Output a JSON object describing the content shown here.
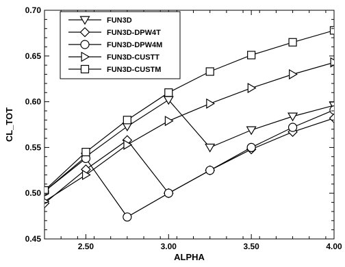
{
  "chart_data": {
    "type": "line",
    "xlabel": "ALPHA",
    "ylabel": "CL_TOT",
    "xlim": [
      2.25,
      4.0
    ],
    "ylim": [
      0.45,
      0.7
    ],
    "x_ticks": [
      "2.50",
      "3.00",
      "3.50",
      "4.00"
    ],
    "y_ticks": [
      "0.45",
      "0.50",
      "0.55",
      "0.60",
      "0.65",
      "0.70"
    ],
    "grid": false,
    "legend_position": "top-left",
    "series": [
      {
        "name": "FUN3D",
        "marker": "triangle-down",
        "x": [
          2.25,
          2.5,
          2.75,
          3.0,
          3.25,
          3.5,
          3.75,
          4.0
        ],
        "y": [
          0.502,
          0.54,
          0.573,
          0.602,
          0.55,
          0.569,
          0.584,
          0.596
        ]
      },
      {
        "name": "FUN3D-DPW4T",
        "marker": "diamond",
        "x": [
          2.25,
          2.5,
          2.75,
          3.0,
          3.25,
          3.5,
          3.75,
          4.0
        ],
        "y": [
          0.489,
          0.526,
          0.558,
          0.5,
          0.525,
          0.548,
          0.567,
          0.582
        ]
      },
      {
        "name": "FUN3D-DPW4M",
        "marker": "circle",
        "x": [
          2.25,
          2.5,
          2.75,
          3.0,
          3.25,
          3.5,
          3.75,
          4.0
        ],
        "y": [
          0.502,
          0.538,
          0.474,
          0.5,
          0.525,
          0.55,
          0.572,
          0.591
        ]
      },
      {
        "name": "FUN3D-CUSTT",
        "marker": "triangle-right",
        "x": [
          2.25,
          2.5,
          2.75,
          3.0,
          3.25,
          3.5,
          3.75,
          4.0
        ],
        "y": [
          0.491,
          0.52,
          0.553,
          0.579,
          0.598,
          0.615,
          0.63,
          0.643
        ]
      },
      {
        "name": "FUN3D-CUSTM",
        "marker": "square",
        "x": [
          2.25,
          2.5,
          2.75,
          3.0,
          3.25,
          3.5,
          3.75,
          4.0
        ],
        "y": [
          0.503,
          0.545,
          0.58,
          0.61,
          0.633,
          0.651,
          0.665,
          0.678
        ]
      }
    ]
  }
}
